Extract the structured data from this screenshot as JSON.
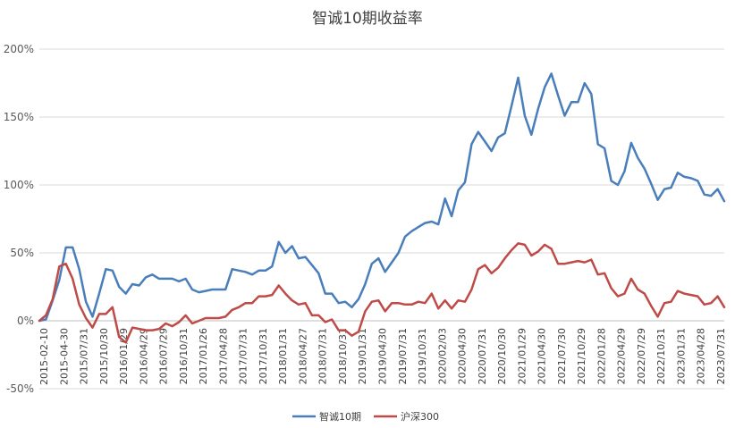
{
  "chart_data": {
    "type": "line",
    "title": "智诚10期收益率",
    "xlabel": "",
    "ylabel": "",
    "ylim": [
      -50,
      200
    ],
    "yticks": [
      -50,
      0,
      50,
      100,
      150,
      200
    ],
    "ytick_format": "percent",
    "grid": true,
    "legend_position": "bottom",
    "xtick_labels": [
      "2015-02-10",
      "2015-04-30",
      "2015/07/31",
      "2015/10/30",
      "2016/01/29",
      "2016/04/29",
      "2016/07/29",
      "2016/10/31",
      "2017/01/26",
      "2017/04/28",
      "2017/07/31",
      "2017/10/31",
      "2018/01/31",
      "2018/04/27",
      "2018/07/31",
      "2018/10/31",
      "2019/01/31",
      "2019/04/30",
      "2019/07/31",
      "2019/10/31",
      "2020/02/03",
      "2020/04/30",
      "2020/07/31",
      "2020/10/30",
      "2021/01/29",
      "2021/04/30",
      "2021/07/30",
      "2021/10/29",
      "2022/01/28",
      "2022/04/29",
      "2022/07/29",
      "2022/10/31",
      "2023/01/31",
      "2023/04/28",
      "2023/07/31"
    ],
    "series": [
      {
        "name": "智诚10期",
        "color": "#4a7ebb",
        "values": [
          0,
          1,
          15,
          30,
          54,
          54,
          38,
          14,
          3,
          20,
          38,
          37,
          25,
          20,
          27,
          26,
          32,
          34,
          31,
          31,
          31,
          29,
          31,
          23,
          21,
          22,
          23,
          23,
          23,
          38,
          37,
          36,
          34,
          37,
          37,
          40,
          58,
          50,
          55,
          46,
          47,
          41,
          35,
          20,
          20,
          13,
          14,
          10,
          16,
          27,
          42,
          46,
          36,
          43,
          50,
          62,
          66,
          69,
          72,
          73,
          71,
          90,
          77,
          96,
          102,
          130,
          139,
          132,
          125,
          135,
          138,
          158,
          179,
          151,
          137,
          156,
          172,
          182,
          166,
          151,
          161,
          161,
          175,
          167,
          130,
          127,
          103,
          100,
          110,
          131,
          120,
          112,
          101,
          89,
          97,
          98,
          109,
          106,
          105,
          103,
          93,
          92,
          97,
          88
        ]
      },
      {
        "name": "沪深300",
        "color": "#be4b48",
        "values": [
          0,
          4,
          16,
          40,
          42,
          31,
          12,
          2,
          -5,
          5,
          5,
          10,
          -12,
          -16,
          -5,
          -6,
          -7,
          -7,
          -6,
          -2,
          -4,
          -1,
          4,
          -2,
          0,
          2,
          2,
          2,
          3,
          8,
          10,
          13,
          13,
          18,
          18,
          19,
          26,
          20,
          15,
          12,
          13,
          4,
          4,
          -1,
          1,
          -7,
          -7,
          -11,
          -8,
          7,
          14,
          15,
          7,
          13,
          13,
          12,
          12,
          14,
          13,
          20,
          9,
          15,
          9,
          15,
          14,
          23,
          38,
          41,
          35,
          39,
          46,
          52,
          57,
          56,
          48,
          51,
          56,
          53,
          42,
          42,
          43,
          44,
          43,
          45,
          34,
          35,
          24,
          18,
          20,
          31,
          23,
          20,
          11,
          3,
          13,
          14,
          22,
          20,
          19,
          18,
          12,
          13,
          18,
          10
        ]
      }
    ]
  }
}
